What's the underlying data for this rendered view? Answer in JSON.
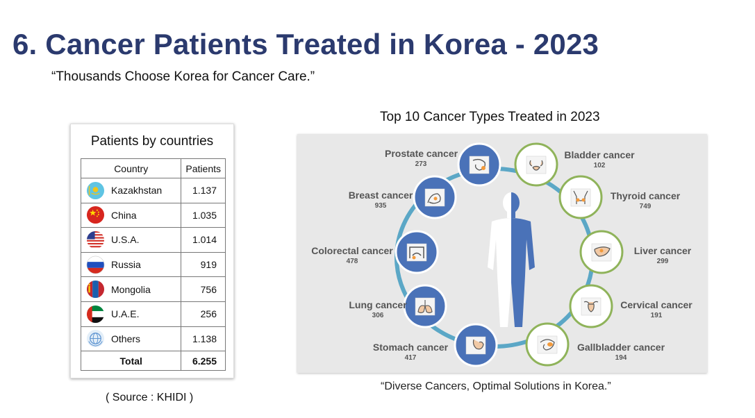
{
  "header": {
    "title": "6. Cancer Patients Treated in Korea - 2023",
    "subtitle": "“Thousands Choose Korea for Cancer Care.”"
  },
  "countries_table": {
    "title": "Patients by countries",
    "columns": [
      "Country",
      "Patients"
    ],
    "rows": [
      {
        "country": "Kazakhstan",
        "patients": "1.137",
        "icon": "kazakhstan-flag-icon"
      },
      {
        "country": "China",
        "patients": "1.035",
        "icon": "china-flag-icon"
      },
      {
        "country": "U.S.A.",
        "patients": "1.014",
        "icon": "usa-flag-icon"
      },
      {
        "country": "Russia",
        "patients": "919",
        "icon": "russia-flag-icon"
      },
      {
        "country": "Mongolia",
        "patients": "756",
        "icon": "mongolia-flag-icon"
      },
      {
        "country": "U.A.E.",
        "patients": "256",
        "icon": "uae-flag-icon"
      },
      {
        "country": "Others",
        "patients": "1.138",
        "icon": "globe-emblem-icon"
      }
    ],
    "total_label": "Total",
    "total_value": "6.255",
    "source": "( Source : KHIDI )"
  },
  "cancer_diagram": {
    "heading": "Top 10 Cancer Types Treated in 2023",
    "caption": "“Diverse Cancers, Optimal Solutions in Korea.”",
    "colors": {
      "blue": "#4a72b8",
      "green": "#8fb35a",
      "ring": "#5ba7c6",
      "label": "#555555"
    },
    "types": [
      {
        "name": "Prostate cancer",
        "count": "273",
        "style": "blue",
        "icon": "prostate-icon"
      },
      {
        "name": "Breast cancer",
        "count": "935",
        "style": "blue",
        "icon": "breast-icon"
      },
      {
        "name": "Colorectal cancer",
        "count": "478",
        "style": "blue",
        "icon": "colon-icon"
      },
      {
        "name": "Lung cancer",
        "count": "306",
        "style": "blue",
        "icon": "lungs-icon"
      },
      {
        "name": "Stomach cancer",
        "count": "417",
        "style": "blue",
        "icon": "stomach-icon"
      },
      {
        "name": "Bladder cancer",
        "count": "102",
        "style": "green",
        "icon": "bladder-icon"
      },
      {
        "name": "Thyroid cancer",
        "count": "749",
        "style": "green",
        "icon": "thyroid-icon"
      },
      {
        "name": "Liver cancer",
        "count": "299",
        "style": "green",
        "icon": "liver-icon"
      },
      {
        "name": "Cervical cancer",
        "count": "191",
        "style": "green",
        "icon": "uterus-icon"
      },
      {
        "name": "Gallbladder cancer",
        "count": "194",
        "style": "green",
        "icon": "gallbladder-icon"
      }
    ]
  }
}
